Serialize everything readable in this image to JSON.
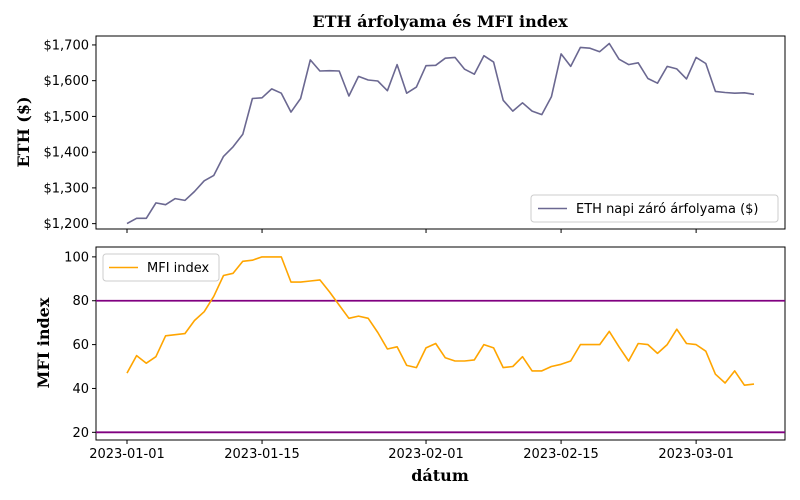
{
  "chart_data": [
    {
      "type": "line",
      "title": "ETH árfolyama és MFI index",
      "xlabel": "",
      "ylabel": "ETH ($)",
      "ylim": [
        1185,
        1725
      ],
      "yticks": [
        "$1,200",
        "$1,300",
        "$1,400",
        "$1,500",
        "$1,600",
        "$1,700"
      ],
      "ytick_values": [
        1200,
        1300,
        1400,
        1500,
        1600,
        1700
      ],
      "legend_position": "lower-right",
      "grid": false,
      "series": [
        {
          "name": "ETH napi záró árfolyama ($)",
          "color": "#6b6891",
          "values": [
            1200,
            1215,
            1215,
            1258,
            1253,
            1270,
            1265,
            1290,
            1320,
            1335,
            1388,
            1415,
            1450,
            1550,
            1552,
            1577,
            1565,
            1512,
            1550,
            1658,
            1627,
            1628,
            1627,
            1557,
            1612,
            1602,
            1599,
            1572,
            1645,
            1565,
            1582,
            1642,
            1643,
            1663,
            1665,
            1632,
            1618,
            1670,
            1652,
            1545,
            1515,
            1538,
            1515,
            1505,
            1555,
            1675,
            1640,
            1693,
            1691,
            1681,
            1704,
            1660,
            1645,
            1650,
            1606,
            1593,
            1640,
            1633,
            1605,
            1665,
            1648,
            1570,
            1567,
            1565,
            1566,
            1562
          ]
        }
      ]
    },
    {
      "type": "line",
      "xlabel": "dátum",
      "ylabel": "MFI index",
      "ylim": [
        16.5,
        104.5
      ],
      "yticks": [
        "20",
        "40",
        "60",
        "80",
        "100"
      ],
      "ytick_values": [
        20,
        40,
        60,
        80,
        100
      ],
      "xticks": [
        "2023-01-01",
        "2023-01-15",
        "2023-02-01",
        "2023-02-15",
        "2023-03-01"
      ],
      "xtick_days": [
        0,
        14,
        31,
        45,
        59
      ],
      "x_start": "2023-01-01",
      "legend_position": "upper-left",
      "hlines": [
        {
          "y": 80,
          "color": "#800080"
        },
        {
          "y": 20,
          "color": "#800080"
        }
      ],
      "series": [
        {
          "name": "MFI index",
          "color": "#ffa500",
          "values": [
            47,
            55,
            51.5,
            54.5,
            64,
            64.5,
            65,
            71,
            75,
            82,
            91.5,
            92.5,
            98,
            98.5,
            100,
            100,
            100,
            88.5,
            88.5,
            89,
            89.5,
            84,
            78,
            72,
            73,
            72,
            65.5,
            58,
            59,
            50.5,
            49.5,
            58.5,
            60.5,
            54,
            52.5,
            52.5,
            53,
            60,
            58.5,
            49.5,
            50,
            54.5,
            48,
            48,
            50,
            51,
            52.5,
            60,
            60,
            60,
            66,
            59,
            52.5,
            60.5,
            60,
            56,
            60,
            67,
            60.5,
            60,
            57,
            46.5,
            42.5,
            48,
            41.5,
            42
          ]
        }
      ]
    }
  ]
}
